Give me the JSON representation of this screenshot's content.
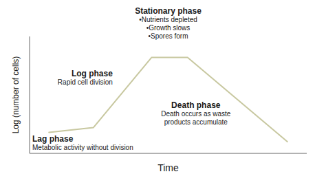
{
  "chart_data": {
    "type": "line",
    "x": [
      0.07,
      0.23,
      0.44,
      0.57,
      0.93
    ],
    "values": [
      0.18,
      0.22,
      0.82,
      0.82,
      0.1
    ],
    "color": "#c8c8a0",
    "xlabel": "Time",
    "ylabel": "Log (number of cells)",
    "xlim": [
      0,
      1
    ],
    "ylim": [
      0,
      1
    ],
    "tick_labels": false,
    "grid": false,
    "annotations": [
      [
        "Lag phase",
        "Metabolic activity without division"
      ],
      [
        "Log phase",
        "Rapid cell division"
      ],
      [
        "Stationary phase",
        "•Nutrients depleted\n•Growth slows\n•Spores form"
      ],
      [
        "Death phase",
        "Death occurs as waste\nproducts accumulate"
      ]
    ]
  }
}
